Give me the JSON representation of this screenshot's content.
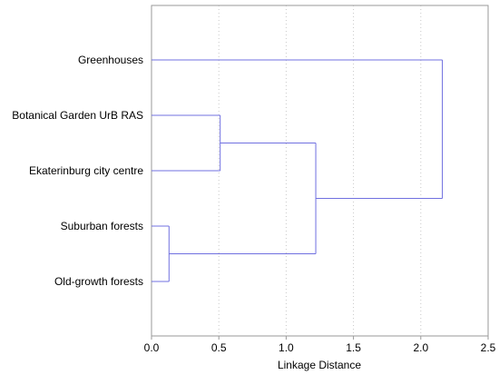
{
  "chart_data": {
    "type": "dendrogram",
    "orientation": "horizontal",
    "xlabel": "Linkage Distance",
    "xlim": [
      0,
      2.5
    ],
    "x_ticks": [
      "0.0",
      "0.5",
      "1.0",
      "1.5",
      "2.0",
      "2.5"
    ],
    "x_tick_values": [
      0,
      0.5,
      1.0,
      1.5,
      2.0,
      2.5
    ],
    "grid": "vertical dotted",
    "link_color": "#7070e0",
    "leaves": [
      "Greenhouses",
      "Botanical Garden UrB RAS",
      "Ekaterinburg city centre",
      "Suburban forests",
      "Old-growth forests"
    ],
    "merges": [
      {
        "members": [
          "Suburban forests",
          "Old-growth forests"
        ],
        "distance": 0.13
      },
      {
        "members": [
          "Botanical Garden UrB RAS",
          "Ekaterinburg city centre"
        ],
        "distance": 0.51
      },
      {
        "members": [
          "Botanical Garden UrB RAS",
          "Ekaterinburg city centre",
          "Suburban forests",
          "Old-growth forests"
        ],
        "distance": 1.22
      },
      {
        "members": [
          "Greenhouses",
          "Botanical Garden UrB RAS",
          "Ekaterinburg city centre",
          "Suburban forests",
          "Old-growth forests"
        ],
        "distance": 2.16
      }
    ]
  }
}
